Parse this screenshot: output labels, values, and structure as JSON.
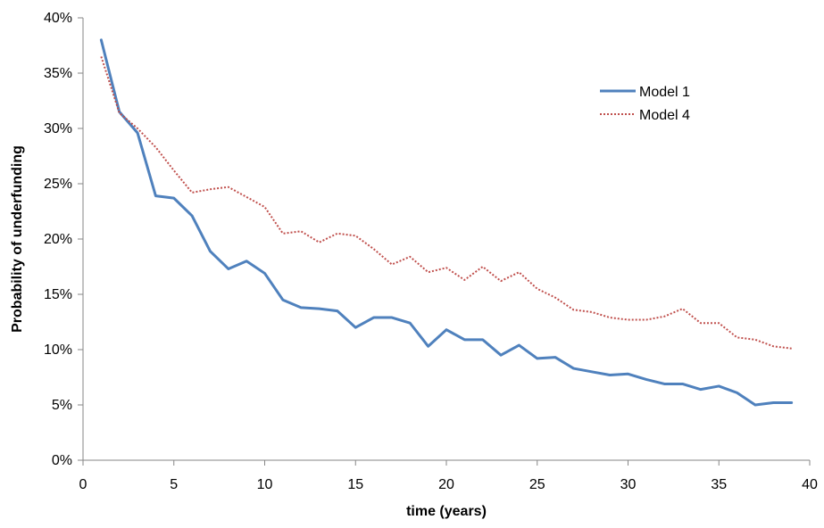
{
  "chart_data": {
    "type": "line",
    "title": "",
    "xlabel": "time (years)",
    "ylabel": "Probability of underfunding",
    "xlim": [
      0,
      40
    ],
    "ylim": [
      0,
      40
    ],
    "x_ticks": [
      "0",
      "5",
      "10",
      "15",
      "20",
      "25",
      "30",
      "35",
      "40"
    ],
    "y_ticks": [
      "0%",
      "5%",
      "10%",
      "15%",
      "20%",
      "25%",
      "30%",
      "35%",
      "40%"
    ],
    "y_unit": "%",
    "grid": false,
    "legend_position": "top-right",
    "x": [
      1,
      2,
      3,
      4,
      5,
      6,
      7,
      8,
      9,
      10,
      11,
      12,
      13,
      14,
      15,
      16,
      17,
      18,
      19,
      20,
      21,
      22,
      23,
      24,
      25,
      26,
      27,
      28,
      29,
      30,
      31,
      32,
      33,
      34,
      35,
      36,
      37,
      38,
      39
    ],
    "series": [
      {
        "name": "Model 1",
        "color": "#4F81BD",
        "style": "solid",
        "values": [
          38.0,
          31.5,
          29.6,
          23.9,
          23.7,
          22.1,
          18.9,
          17.3,
          18.0,
          16.9,
          14.5,
          13.8,
          13.7,
          13.5,
          12.0,
          12.9,
          12.9,
          12.4,
          10.3,
          11.8,
          10.9,
          10.9,
          9.5,
          10.4,
          9.2,
          9.3,
          8.3,
          8.0,
          7.7,
          7.8,
          7.3,
          6.9,
          6.9,
          6.4,
          6.7,
          6.1,
          5.0,
          5.2,
          5.2
        ]
      },
      {
        "name": "Model 4",
        "color": "#C0504D",
        "style": "dotted",
        "values": [
          36.5,
          31.4,
          30.0,
          28.3,
          26.2,
          24.2,
          24.5,
          24.7,
          23.8,
          22.9,
          20.5,
          20.7,
          19.7,
          20.5,
          20.3,
          19.1,
          17.7,
          18.4,
          17.0,
          17.4,
          16.3,
          17.5,
          16.2,
          17.0,
          15.5,
          14.7,
          13.6,
          13.4,
          12.9,
          12.7,
          12.7,
          13.0,
          13.7,
          12.4,
          12.4,
          11.1,
          10.9,
          10.3,
          10.1
        ]
      }
    ]
  }
}
